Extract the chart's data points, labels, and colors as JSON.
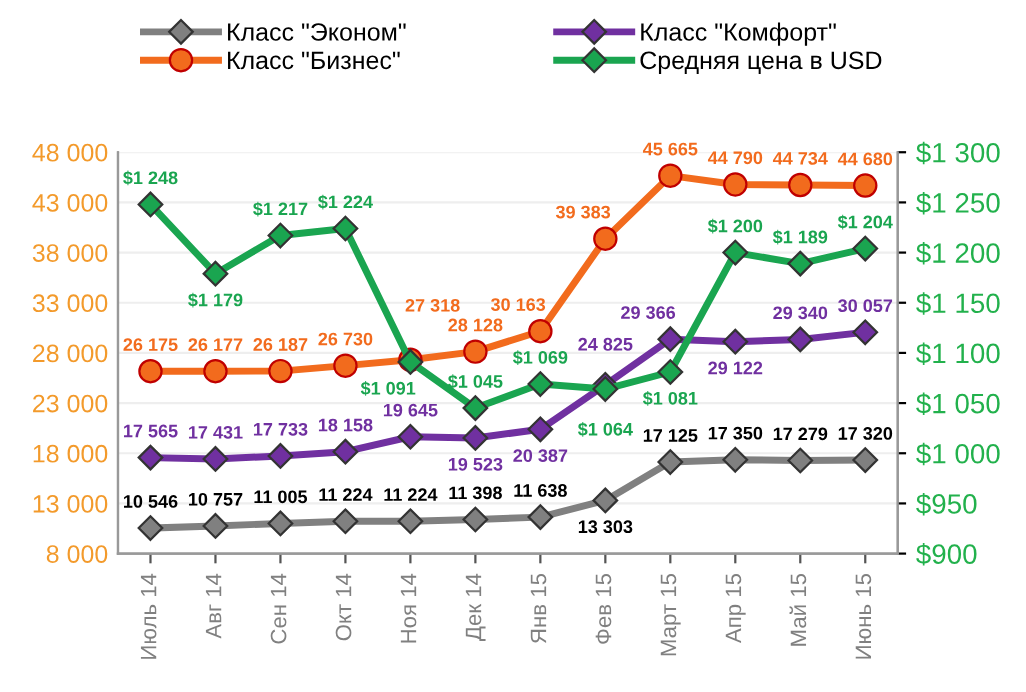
{
  "chart_data": {
    "type": "line",
    "categories": [
      "Июль 14",
      "Авг 14",
      "Сен 14",
      "Окт 14",
      "Ноя 14",
      "Дек 14",
      "Янв 15",
      "Фев 15",
      "Март 15",
      "Апр 15",
      "Май 15",
      "Июнь 15"
    ],
    "series": [
      {
        "name": "Класс \"Эконом\"",
        "color": "#808080",
        "marker": "diamond",
        "values": [
          10546,
          10757,
          11005,
          11224,
          11224,
          11398,
          11638,
          13303,
          17125,
          17350,
          17279,
          17320
        ],
        "value_labels": [
          "10 546",
          "10 757",
          "11 005",
          "11 224",
          "11 224",
          "11 398",
          "11 638",
          "13 303",
          "17 125",
          "17 350",
          "17 279",
          "17 320"
        ]
      },
      {
        "name": "Класс \"Комфорт\"",
        "color": "#7030a0",
        "marker": "diamond",
        "values": [
          17565,
          17431,
          17733,
          18158,
          19645,
          19523,
          20387,
          24825,
          29366,
          29122,
          29340,
          30057
        ],
        "value_labels": [
          "17 565",
          "17 431",
          "17 733",
          "18 158",
          "19 645",
          "19 523",
          "20 387",
          "24 825",
          "29 366",
          "29 122",
          "29 340",
          "30 057"
        ]
      },
      {
        "name": "Класс \"Бизнес\"",
        "color": "#f26b1d",
        "marker": "circle",
        "values": [
          26175,
          26177,
          26187,
          26730,
          27318,
          28128,
          30163,
          39383,
          45665,
          44790,
          44734,
          44680
        ],
        "value_labels": [
          "26 175",
          "26 177",
          "26 187",
          "26 730",
          "27 318",
          "28 128",
          "30 163",
          "39 383",
          "45 665",
          "44 790",
          "44 734",
          "44 680"
        ]
      },
      {
        "name": "Средняя цена в USD",
        "color": "#1aa550",
        "marker": "diamond",
        "axis": "y2",
        "values": [
          1248,
          1179,
          1217,
          1224,
          1091,
          1045,
          1069,
          1064,
          1081,
          1200,
          1189,
          1204
        ],
        "value_labels": [
          "$1 248",
          "$1 179",
          "$1 217",
          "$1 224",
          "$1 091",
          "$1 045",
          "$1 069",
          "$1 064",
          "$1 081",
          "$1 200",
          "$1 189",
          "$1 204"
        ]
      }
    ],
    "ylim": [
      8000,
      48000
    ],
    "yticks": [
      {
        "value": 8000,
        "label": "8 000"
      },
      {
        "value": 13000,
        "label": "13 000"
      },
      {
        "value": 18000,
        "label": "18 000"
      },
      {
        "value": 23000,
        "label": "23 000"
      },
      {
        "value": 28000,
        "label": "28 000"
      },
      {
        "value": 33000,
        "label": "33 000"
      },
      {
        "value": 38000,
        "label": "38 000"
      },
      {
        "value": 43000,
        "label": "43 000"
      },
      {
        "value": 48000,
        "label": "48 000"
      }
    ],
    "y2lim": [
      900,
      1300
    ],
    "y2ticks": [
      {
        "value": 900,
        "label": "$900"
      },
      {
        "value": 950,
        "label": "$950"
      },
      {
        "value": 1000,
        "label": "$1 000"
      },
      {
        "value": 1050,
        "label": "$1 050"
      },
      {
        "value": 1100,
        "label": "$1 100"
      },
      {
        "value": 1150,
        "label": "$1 150"
      },
      {
        "value": 1200,
        "label": "$1 200"
      },
      {
        "value": 1250,
        "label": "$1 250"
      },
      {
        "value": 1300,
        "label": "$1 300"
      }
    ],
    "grid": "y",
    "legend": "top",
    "line_style": "solid"
  }
}
